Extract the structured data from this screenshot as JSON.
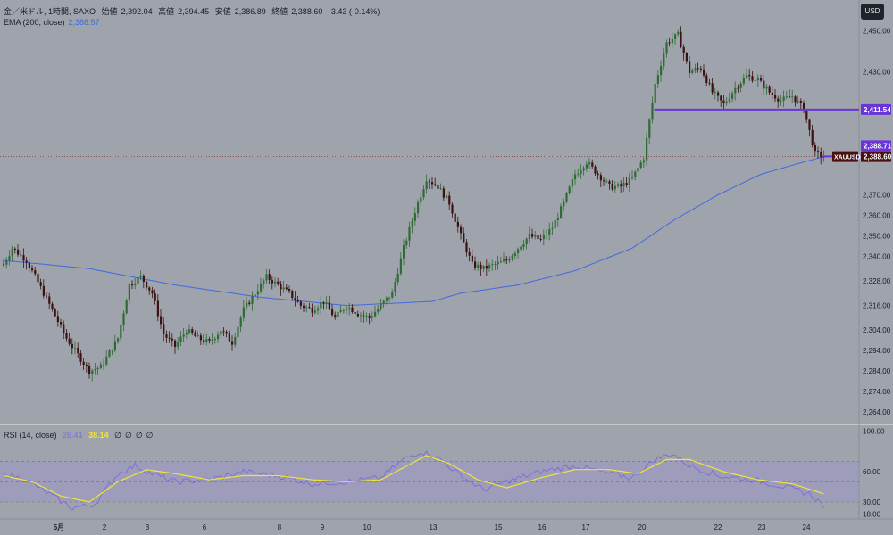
{
  "header": {
    "symbol": "金／米ドル, 1時間, SAXO",
    "open_label": "始値",
    "open": "2,392.04",
    "high_label": "高値",
    "high": "2,394.45",
    "low_label": "安値",
    "low": "2,386.89",
    "close_label": "終値",
    "close": "2,388.60",
    "change": "-3.43 (-0.14%)",
    "ema_label": "EMA (200, close)",
    "ema_value": "2,388.57",
    "currency_button": "USD"
  },
  "rsi_header": {
    "label": "RSI (14, close)",
    "rsi_value": "26.41",
    "ma_value": "38.14",
    "icons": [
      "∅",
      "∅",
      "∅",
      "∅"
    ]
  },
  "colors": {
    "background": "#9fa3ab",
    "up": "#2f6b35",
    "down": "#3a1212",
    "ema": "#4169e1",
    "rsi": "#7c6cd6",
    "rsi_ma": "#f0e43a",
    "hline": "#6a35d8",
    "price_tag": "#4a1010"
  },
  "chart_data": [
    {
      "type": "candlestick",
      "symbol": "XAUUSD",
      "ylim": [
        2258,
        2465
      ],
      "y_ticks": [
        2264,
        2274,
        2284,
        2294,
        2304,
        2316,
        2328,
        2340,
        2350,
        2360,
        2370,
        2388.6,
        2411.54,
        2430,
        2450
      ],
      "y_tick_labels": [
        "2,264.00",
        "2,274.00",
        "2,284.00",
        "2,294.00",
        "2,304.00",
        "2,316.00",
        "2,328.00",
        "2,340.00",
        "2,350.00",
        "2,360.00",
        "2,370.00",
        "2,388.60",
        "2,411.54",
        "2,430.00",
        "2,450.00"
      ],
      "x_labels": [
        "5月",
        "2",
        "3",
        "6",
        "8",
        "9",
        "10",
        "13",
        "15",
        "16",
        "17",
        "20",
        "22",
        "23",
        "24"
      ],
      "price_path": [
        [
          0,
          2336
        ],
        [
          3,
          2344
        ],
        [
          8,
          2338
        ],
        [
          14,
          2322
        ],
        [
          22,
          2300
        ],
        [
          30,
          2284
        ],
        [
          34,
          2286
        ],
        [
          40,
          2300
        ],
        [
          44,
          2326
        ],
        [
          48,
          2330
        ],
        [
          52,
          2322
        ],
        [
          56,
          2302
        ],
        [
          60,
          2296
        ],
        [
          64,
          2304
        ],
        [
          68,
          2300
        ],
        [
          72,
          2298
        ],
        [
          76,
          2304
        ],
        [
          80,
          2298
        ],
        [
          84,
          2314
        ],
        [
          88,
          2322
        ],
        [
          92,
          2330
        ],
        [
          96,
          2326
        ],
        [
          100,
          2322
        ],
        [
          104,
          2316
        ],
        [
          108,
          2314
        ],
        [
          112,
          2318
        ],
        [
          116,
          2310
        ],
        [
          120,
          2316
        ],
        [
          124,
          2312
        ],
        [
          128,
          2310
        ],
        [
          132,
          2316
        ],
        [
          136,
          2322
        ],
        [
          140,
          2344
        ],
        [
          144,
          2362
        ],
        [
          148,
          2378
        ],
        [
          152,
          2374
        ],
        [
          156,
          2366
        ],
        [
          160,
          2350
        ],
        [
          164,
          2336
        ],
        [
          168,
          2334
        ],
        [
          172,
          2336
        ],
        [
          176,
          2338
        ],
        [
          180,
          2344
        ],
        [
          184,
          2350
        ],
        [
          188,
          2348
        ],
        [
          192,
          2354
        ],
        [
          196,
          2366
        ],
        [
          200,
          2380
        ],
        [
          204,
          2386
        ],
        [
          208,
          2380
        ],
        [
          212,
          2374
        ],
        [
          216,
          2374
        ],
        [
          220,
          2378
        ],
        [
          224,
          2388
        ],
        [
          228,
          2424
        ],
        [
          232,
          2444
        ],
        [
          236,
          2448
        ],
        [
          240,
          2430
        ],
        [
          244,
          2432
        ],
        [
          248,
          2420
        ],
        [
          252,
          2414
        ],
        [
          256,
          2422
        ],
        [
          260,
          2428
        ],
        [
          264,
          2426
        ],
        [
          268,
          2420
        ],
        [
          272,
          2416
        ],
        [
          276,
          2418
        ],
        [
          280,
          2412
        ],
        [
          284,
          2390
        ],
        [
          287,
          2388.6
        ]
      ],
      "ema_200": [
        [
          0,
          2338
        ],
        [
          30,
          2334
        ],
        [
          60,
          2326
        ],
        [
          90,
          2320
        ],
        [
          120,
          2316
        ],
        [
          150,
          2318
        ],
        [
          160,
          2322
        ],
        [
          180,
          2326
        ],
        [
          200,
          2333
        ],
        [
          220,
          2344
        ],
        [
          235,
          2358
        ],
        [
          250,
          2370
        ],
        [
          265,
          2380
        ],
        [
          280,
          2386
        ],
        [
          287,
          2388.57
        ]
      ],
      "horizontal_lines": [
        {
          "label": "2,411.54",
          "value": 2411.54,
          "from_x": 228
        },
        {
          "label": "2,388.71",
          "value": 2388.71,
          "from_x": 287
        }
      ],
      "last_price_tag": {
        "symbol": "XAUUSD",
        "value": 2388.6,
        "label": "2,388.60"
      }
    },
    {
      "type": "line",
      "name": "RSI (14, close)",
      "ylim": [
        15,
        105
      ],
      "y_ticks": [
        18,
        30,
        60,
        100
      ],
      "y_tick_labels": [
        "18.00",
        "30.00",
        "60.00",
        "100.00"
      ],
      "band": [
        30,
        70
      ],
      "rsi": [
        [
          0,
          58
        ],
        [
          8,
          52
        ],
        [
          16,
          38
        ],
        [
          24,
          24
        ],
        [
          32,
          28
        ],
        [
          40,
          58
        ],
        [
          46,
          66
        ],
        [
          52,
          58
        ],
        [
          60,
          50
        ],
        [
          72,
          52
        ],
        [
          84,
          60
        ],
        [
          96,
          56
        ],
        [
          108,
          48
        ],
        [
          120,
          50
        ],
        [
          132,
          54
        ],
        [
          140,
          72
        ],
        [
          146,
          80
        ],
        [
          152,
          74
        ],
        [
          160,
          56
        ],
        [
          168,
          42
        ],
        [
          176,
          50
        ],
        [
          188,
          60
        ],
        [
          200,
          66
        ],
        [
          212,
          58
        ],
        [
          220,
          54
        ],
        [
          228,
          72
        ],
        [
          234,
          78
        ],
        [
          240,
          66
        ],
        [
          250,
          56
        ],
        [
          262,
          52
        ],
        [
          272,
          46
        ],
        [
          282,
          38
        ],
        [
          287,
          26.41
        ]
      ],
      "rsi_ma": [
        [
          0,
          56
        ],
        [
          10,
          50
        ],
        [
          20,
          36
        ],
        [
          30,
          30
        ],
        [
          40,
          50
        ],
        [
          50,
          62
        ],
        [
          60,
          58
        ],
        [
          72,
          52
        ],
        [
          84,
          56
        ],
        [
          96,
          56
        ],
        [
          108,
          52
        ],
        [
          120,
          50
        ],
        [
          132,
          52
        ],
        [
          140,
          64
        ],
        [
          148,
          76
        ],
        [
          156,
          68
        ],
        [
          166,
          52
        ],
        [
          176,
          44
        ],
        [
          188,
          54
        ],
        [
          200,
          62
        ],
        [
          212,
          62
        ],
        [
          222,
          58
        ],
        [
          232,
          72
        ],
        [
          240,
          72
        ],
        [
          252,
          60
        ],
        [
          264,
          52
        ],
        [
          276,
          48
        ],
        [
          287,
          38.14
        ]
      ]
    }
  ]
}
